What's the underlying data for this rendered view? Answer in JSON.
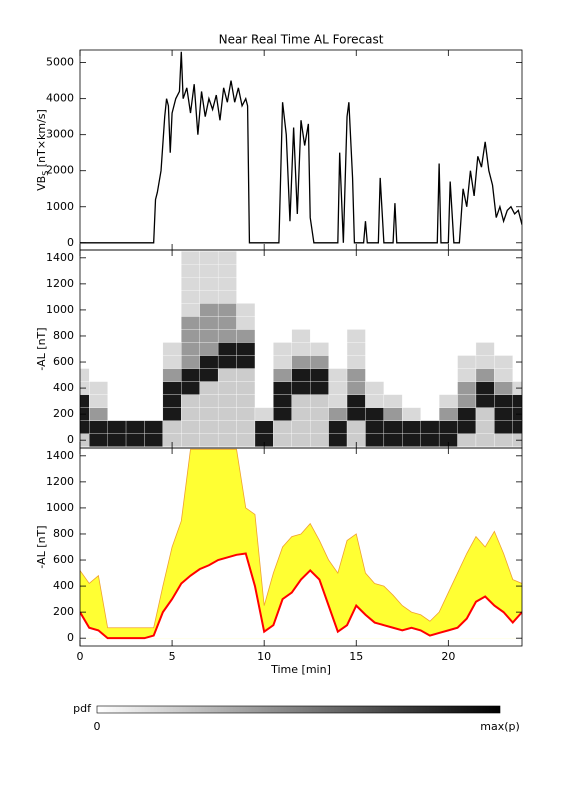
{
  "chart_data": [
    {
      "type": "line",
      "title": "Near Real Time AL Forecast",
      "ylabel": "VB",
      "ylabel_sub": "S",
      "ylabel_unit": " [nT×km/s]",
      "xlim": [
        0,
        24
      ],
      "xticks": [
        0,
        5,
        10,
        15,
        20
      ],
      "ylim": [
        -200,
        5350
      ],
      "yticks": [
        0,
        1000,
        2000,
        3000,
        4000,
        5000
      ],
      "color": "#000000",
      "x": [
        0,
        4.0,
        4.1,
        4.2,
        4.4,
        4.6,
        4.7,
        4.8,
        4.9,
        5.0,
        5.2,
        5.4,
        5.5,
        5.6,
        5.8,
        6.0,
        6.2,
        6.4,
        6.6,
        6.8,
        7.0,
        7.2,
        7.4,
        7.6,
        7.8,
        8.0,
        8.2,
        8.4,
        8.6,
        8.8,
        9.0,
        9.1,
        9.2,
        10.8,
        11.0,
        11.2,
        11.4,
        11.6,
        11.8,
        12.0,
        12.2,
        12.4,
        12.5,
        12.7,
        14.0,
        14.1,
        14.3,
        14.5,
        14.6,
        14.8,
        14.9,
        15.4,
        15.5,
        15.6,
        16.2,
        16.3,
        16.5,
        17.0,
        17.1,
        17.2,
        19.4,
        19.5,
        19.6,
        20.0,
        20.1,
        20.3,
        20.6,
        20.8,
        21.0,
        21.2,
        21.4,
        21.6,
        21.8,
        22.0,
        22.2,
        22.4,
        22.6,
        22.8,
        23.0,
        23.2,
        23.4,
        23.6,
        23.8,
        24.0
      ],
      "values": [
        0,
        0,
        1200,
        1400,
        2000,
        3500,
        4000,
        3800,
        2500,
        3600,
        4000,
        4200,
        5300,
        4000,
        4300,
        3600,
        4400,
        3000,
        4200,
        3500,
        4000,
        3700,
        4100,
        3400,
        4300,
        3900,
        4500,
        3900,
        4300,
        3800,
        4000,
        3800,
        0,
        0,
        3900,
        3000,
        600,
        3200,
        800,
        3400,
        2700,
        3300,
        700,
        0,
        0,
        2500,
        0,
        3500,
        3900,
        1800,
        0,
        0,
        600,
        0,
        0,
        1800,
        0,
        0,
        1100,
        0,
        0,
        2200,
        0,
        0,
        1700,
        0,
        0,
        1500,
        1000,
        2000,
        1300,
        2400,
        2100,
        2800,
        2000,
        1600,
        700,
        1000,
        600,
        900,
        1000,
        800,
        900,
        500
      ]
    },
    {
      "type": "heatmap",
      "ylabel": "-AL [nT]",
      "xlim": [
        0,
        24
      ],
      "xticks": [
        0,
        5,
        10,
        15,
        20
      ],
      "ylim": [
        -60,
        1460
      ],
      "yticks": [
        0,
        200,
        400,
        600,
        800,
        1000,
        1200,
        1400
      ],
      "x": [
        0,
        1,
        2,
        3,
        4,
        5,
        6,
        7,
        8,
        9,
        10,
        11,
        12,
        13,
        14,
        15,
        16,
        17,
        18,
        19,
        20,
        21,
        22,
        23,
        24
      ],
      "y": [
        0,
        100,
        200,
        300,
        400,
        500,
        600,
        700,
        800,
        900,
        1000,
        1100,
        1200,
        1300,
        1400
      ],
      "z": [
        [
          0.2,
          0.9,
          0.9,
          0.9,
          0.15,
          0.15,
          0,
          0,
          0,
          0,
          0,
          0,
          0,
          0,
          0
        ],
        [
          0.9,
          0.9,
          0.4,
          0.15,
          0.15,
          0,
          0,
          0,
          0,
          0,
          0,
          0,
          0,
          0,
          0
        ],
        [
          0.9,
          0.9,
          0,
          0,
          0,
          0,
          0,
          0,
          0,
          0,
          0,
          0,
          0,
          0,
          0
        ],
        [
          0.9,
          0.9,
          0,
          0,
          0,
          0,
          0,
          0,
          0,
          0,
          0,
          0,
          0,
          0,
          0
        ],
        [
          0.9,
          0.9,
          0,
          0,
          0,
          0,
          0,
          0,
          0,
          0,
          0,
          0,
          0,
          0,
          0
        ],
        [
          0.2,
          0.2,
          0.9,
          0.9,
          0.9,
          0.4,
          0.15,
          0.15,
          0,
          0,
          0,
          0,
          0,
          0,
          0
        ],
        [
          0.2,
          0.2,
          0.2,
          0.2,
          0.9,
          0.9,
          0.4,
          0.4,
          0.4,
          0.4,
          0.15,
          0.15,
          0.15,
          0.15,
          0.15
        ],
        [
          0.2,
          0.2,
          0.2,
          0.2,
          0.2,
          0.9,
          0.9,
          0.4,
          0.4,
          0.4,
          0.4,
          0.15,
          0.15,
          0.15,
          0.15
        ],
        [
          0.2,
          0.2,
          0.2,
          0.2,
          0.2,
          0.2,
          0.9,
          0.9,
          0.4,
          0.4,
          0.4,
          0.15,
          0.15,
          0.15,
          0.15
        ],
        [
          0.2,
          0.2,
          0.2,
          0.2,
          0.2,
          0.2,
          0.9,
          0.9,
          0.4,
          0.15,
          0.15,
          0,
          0,
          0,
          0
        ],
        [
          0.9,
          0.9,
          0.15,
          0,
          0,
          0,
          0,
          0,
          0,
          0,
          0,
          0,
          0,
          0,
          0
        ],
        [
          0.2,
          0.2,
          0.9,
          0.9,
          0.9,
          0.4,
          0.15,
          0.15,
          0,
          0,
          0,
          0,
          0,
          0,
          0
        ],
        [
          0.2,
          0.2,
          0.2,
          0.2,
          0.9,
          0.9,
          0.4,
          0.15,
          0.15,
          0,
          0,
          0,
          0,
          0,
          0
        ],
        [
          0.2,
          0.2,
          0.2,
          0.2,
          0.9,
          0.9,
          0.4,
          0.15,
          0,
          0,
          0,
          0,
          0,
          0,
          0
        ],
        [
          0.9,
          0.9,
          0.4,
          0.15,
          0.15,
          0.15,
          0,
          0,
          0,
          0,
          0,
          0,
          0,
          0,
          0
        ],
        [
          0.2,
          0.2,
          0.9,
          0.9,
          0.4,
          0.4,
          0.15,
          0.15,
          0.15,
          0,
          0,
          0,
          0,
          0,
          0
        ],
        [
          0.9,
          0.9,
          0.9,
          0.15,
          0.15,
          0,
          0,
          0,
          0,
          0,
          0,
          0,
          0,
          0,
          0
        ],
        [
          0.9,
          0.9,
          0.4,
          0.15,
          0,
          0,
          0,
          0,
          0,
          0,
          0,
          0,
          0,
          0,
          0
        ],
        [
          0.9,
          0.9,
          0.15,
          0,
          0,
          0,
          0,
          0,
          0,
          0,
          0,
          0,
          0,
          0,
          0
        ],
        [
          0.9,
          0.9,
          0,
          0,
          0,
          0,
          0,
          0,
          0,
          0,
          0,
          0,
          0,
          0,
          0
        ],
        [
          0.9,
          0.9,
          0.4,
          0.15,
          0,
          0,
          0,
          0,
          0,
          0,
          0,
          0,
          0,
          0,
          0
        ],
        [
          0.2,
          0.9,
          0.9,
          0.4,
          0.4,
          0.15,
          0.15,
          0,
          0,
          0,
          0,
          0,
          0,
          0,
          0
        ],
        [
          0.2,
          0.2,
          0.2,
          0.9,
          0.9,
          0.4,
          0.15,
          0.15,
          0,
          0,
          0,
          0,
          0,
          0,
          0
        ],
        [
          0.2,
          0.9,
          0.9,
          0.9,
          0.4,
          0.15,
          0.15,
          0,
          0,
          0,
          0,
          0,
          0,
          0,
          0
        ],
        [
          0.2,
          0.9,
          0.9,
          0.9,
          0.15,
          0,
          0,
          0,
          0,
          0,
          0,
          0,
          0,
          0,
          0
        ]
      ]
    },
    {
      "type": "band",
      "ylabel": "-AL [nT]",
      "xlabel": "Time [min]",
      "xlim": [
        0,
        24
      ],
      "xticks": [
        0,
        5,
        10,
        15,
        20
      ],
      "ylim": [
        -60,
        1460
      ],
      "yticks": [
        0,
        200,
        400,
        600,
        800,
        1000,
        1200,
        1400
      ],
      "x": [
        0,
        0.5,
        1,
        1.5,
        2,
        2.5,
        3,
        3.5,
        4,
        4.5,
        5,
        5.5,
        6,
        6.5,
        7,
        7.5,
        8,
        8.5,
        9,
        9.5,
        10,
        10.5,
        11,
        11.5,
        12,
        12.5,
        13,
        13.5,
        14,
        14.5,
        15,
        15.5,
        16,
        16.5,
        17,
        17.5,
        18,
        18.5,
        19,
        19.5,
        20,
        20.5,
        21,
        21.5,
        22,
        22.5,
        23,
        23.5,
        24
      ],
      "series": [
        {
          "color": "#ffff33",
          "edge_color": "#f0a030",
          "values": [
            520,
            420,
            480,
            80,
            80,
            80,
            80,
            80,
            80,
            400,
            700,
            900,
            1450,
            1450,
            1450,
            1450,
            1450,
            1450,
            1000,
            950,
            250,
            500,
            700,
            780,
            800,
            880,
            750,
            600,
            500,
            750,
            800,
            500,
            420,
            400,
            330,
            250,
            200,
            180,
            130,
            200,
            350,
            500,
            650,
            780,
            700,
            820,
            650,
            450,
            420
          ]
        },
        {
          "color": "#ff0000",
          "values": [
            200,
            80,
            60,
            0,
            0,
            0,
            0,
            0,
            20,
            200,
            300,
            420,
            480,
            530,
            560,
            600,
            620,
            640,
            650,
            400,
            50,
            100,
            300,
            350,
            450,
            520,
            450,
            250,
            50,
            100,
            250,
            180,
            120,
            100,
            80,
            60,
            80,
            60,
            20,
            40,
            60,
            80,
            150,
            280,
            320,
            250,
            200,
            120,
            200
          ]
        }
      ]
    }
  ],
  "colorbar": {
    "label": "pdf",
    "min_label": "0",
    "max_label": "max(p)"
  }
}
